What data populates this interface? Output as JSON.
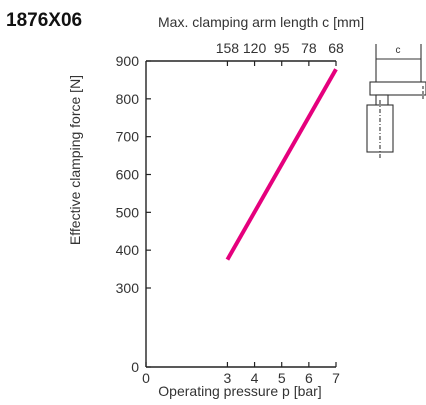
{
  "chart_data": {
    "type": "line",
    "title": "1876X06",
    "top_axis": {
      "label": "Max. clamping arm length c [mm]",
      "ticks": [
        {
          "x": 3,
          "label": "158"
        },
        {
          "x": 4,
          "label": "120"
        },
        {
          "x": 5,
          "label": "95"
        },
        {
          "x": 6,
          "label": "78"
        },
        {
          "x": 7,
          "label": "68"
        }
      ]
    },
    "xlabel": "Operating pressure p [bar]",
    "ylabel": "Effective clamping force [N]",
    "x_ticks": [
      "0",
      "3",
      "4",
      "5",
      "6",
      "7"
    ],
    "y_ticks": [
      "0",
      "300",
      "400",
      "500",
      "600",
      "700",
      "800",
      "900"
    ],
    "xlim": [
      0,
      7
    ],
    "ylim": [
      0,
      900
    ],
    "series": [
      {
        "color": "#e5007d",
        "x": [
          3,
          7
        ],
        "y": [
          375,
          878
        ]
      }
    ],
    "grid": false,
    "legend": "none"
  },
  "diagram": {
    "dimension_label": "c"
  }
}
